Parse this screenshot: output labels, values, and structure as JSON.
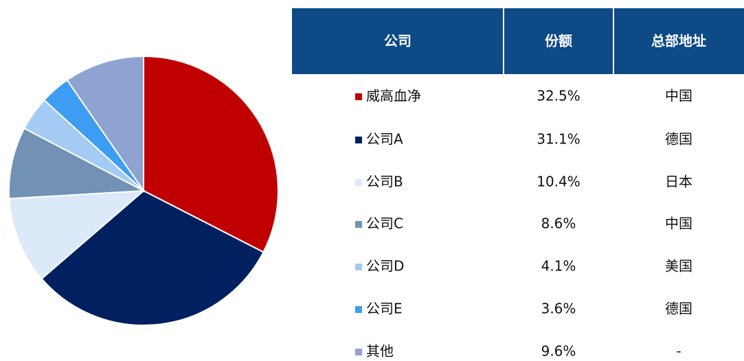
{
  "chart_data": {
    "type": "pie",
    "categories": [
      "威高血净",
      "公司A",
      "公司B",
      "公司C",
      "公司D",
      "公司E",
      "其他"
    ],
    "values": [
      32.5,
      31.1,
      10.4,
      8.6,
      4.1,
      3.6,
      9.6
    ],
    "value_labels": [
      "32.5%",
      "31.1%",
      "10.4%",
      "8.6%",
      "4.1%",
      "3.6%",
      "9.6%"
    ],
    "colors": [
      "#c00000",
      "#002060",
      "#dbe9f9",
      "#7192b5",
      "#a3cbf4",
      "#3d9df2",
      "#8fa3d3"
    ]
  },
  "table": {
    "headers": [
      "公司",
      "份额",
      "总部地址"
    ],
    "hq": [
      "中国",
      "德国",
      "日本",
      "中国",
      "美国",
      "德国",
      "-"
    ]
  }
}
